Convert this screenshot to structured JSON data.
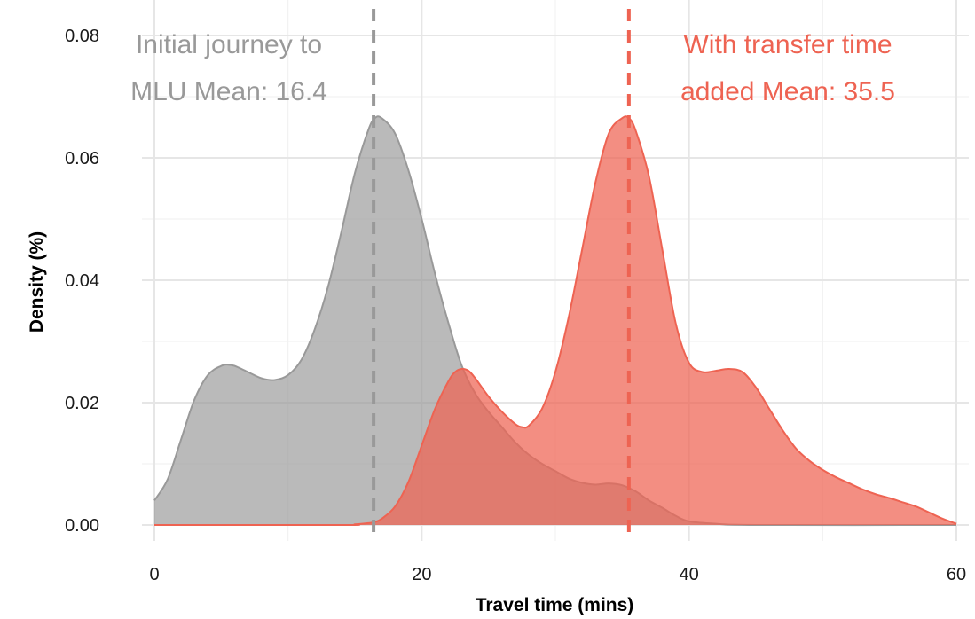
{
  "chart_data": {
    "type": "area",
    "xlabel": "Travel time (mins)",
    "ylabel": "Density (%)",
    "xlim": [
      0,
      60
    ],
    "ylim": [
      0,
      0.08
    ],
    "x_ticks": [
      "0",
      "20",
      "40",
      "60"
    ],
    "y_ticks": [
      "0.00",
      "0.02",
      "0.04",
      "0.06",
      "0.08"
    ],
    "grid": true,
    "legend": "none",
    "series": [
      {
        "color": "#999999",
        "mean": 16.4,
        "x": [
          0,
          1,
          2,
          3,
          4,
          5,
          5.5,
          6,
          7,
          8,
          9,
          10,
          11,
          12,
          13,
          14,
          15,
          16,
          16.5,
          17,
          18,
          19,
          20,
          21,
          22,
          23,
          24,
          25,
          26,
          27,
          28,
          29,
          30,
          31,
          32,
          33,
          34,
          35,
          36,
          37,
          38,
          39,
          40,
          42,
          45,
          60
        ],
        "values": [
          0.004,
          0.0075,
          0.014,
          0.0205,
          0.0245,
          0.026,
          0.0262,
          0.026,
          0.025,
          0.024,
          0.0237,
          0.0245,
          0.027,
          0.032,
          0.039,
          0.048,
          0.0575,
          0.0645,
          0.0665,
          0.0665,
          0.064,
          0.058,
          0.05,
          0.041,
          0.033,
          0.026,
          0.0215,
          0.0185,
          0.016,
          0.0135,
          0.0115,
          0.01,
          0.0088,
          0.0076,
          0.0069,
          0.0066,
          0.0068,
          0.0065,
          0.0055,
          0.004,
          0.0028,
          0.0015,
          0.0006,
          0.0002,
          0.0,
          0.0
        ]
      },
      {
        "color": "#EE6352",
        "mean": 35.5,
        "x": [
          0,
          14,
          15,
          16,
          16.5,
          17,
          18,
          19,
          20,
          21,
          22,
          22.5,
          23,
          23.5,
          24,
          25,
          26,
          27,
          27.5,
          28,
          29,
          30,
          31,
          32,
          33,
          34,
          35,
          35.5,
          36,
          37,
          38,
          39,
          40,
          41,
          42,
          43,
          44,
          45,
          46,
          47,
          48,
          49,
          50,
          51,
          52,
          53,
          54,
          55,
          56,
          57,
          58,
          59,
          60
        ],
        "values": [
          0.0,
          0.0,
          0.0001,
          0.0003,
          0.0005,
          0.001,
          0.003,
          0.007,
          0.013,
          0.019,
          0.0235,
          0.025,
          0.0255,
          0.0252,
          0.024,
          0.021,
          0.0185,
          0.0165,
          0.016,
          0.0162,
          0.019,
          0.025,
          0.034,
          0.045,
          0.056,
          0.064,
          0.0665,
          0.0665,
          0.0645,
          0.057,
          0.045,
          0.033,
          0.0265,
          0.025,
          0.0252,
          0.0255,
          0.025,
          0.0225,
          0.019,
          0.0155,
          0.0125,
          0.0105,
          0.009,
          0.0078,
          0.0068,
          0.0058,
          0.005,
          0.0044,
          0.0037,
          0.003,
          0.002,
          0.001,
          0.0002
        ]
      }
    ],
    "annotations": [
      {
        "lines": [
          "Initial journey to",
          "MLU Mean: 16.4"
        ],
        "color": "#999999"
      },
      {
        "lines": [
          "With transfer time",
          "added Mean: 35.5"
        ],
        "color": "#EE6352"
      }
    ]
  }
}
